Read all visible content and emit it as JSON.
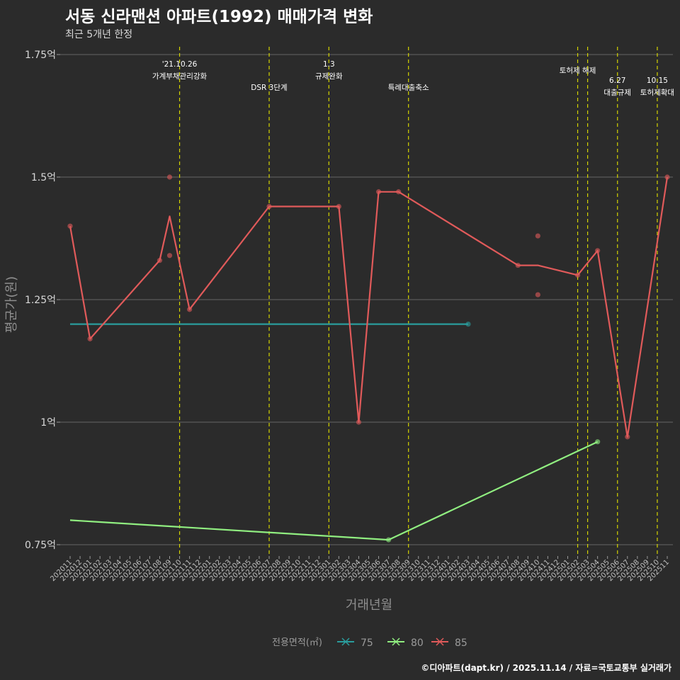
{
  "header": {
    "title": "서동 신라맨션 아파트(1992) 매매가격 변화",
    "subtitle": "최근 5개년 한정"
  },
  "footer": {
    "credit": "©디아파트(dapt.kr) / 2025.11.14 / 자료=국토교통부 실거래가"
  },
  "colors": {
    "background": "#2b2b2b",
    "grid": "#5a5a5a",
    "event_line": "#d4d400",
    "s75": "#2a9d9d",
    "s80": "#90ee80",
    "s85": "#e05a5a"
  },
  "chart_data": {
    "type": "line",
    "xlabel": "거래년월",
    "ylabel": "평균가(원)",
    "ylim": [
      0.74,
      1.77
    ],
    "yticks": [
      0.75,
      1.0,
      1.25,
      1.5,
      1.75
    ],
    "ytick_labels": [
      "0.75억",
      "1억",
      "1.25억",
      "1.5억",
      "1.75억"
    ],
    "categories": [
      "202011",
      "202012",
      "202101",
      "202102",
      "202103",
      "202104",
      "202105",
      "202106",
      "202107",
      "202108",
      "202109",
      "202110",
      "202111",
      "202112",
      "202201",
      "202202",
      "202203",
      "202204",
      "202205",
      "202206",
      "202207",
      "202208",
      "202209",
      "202210",
      "202211",
      "202212",
      "202301",
      "202302",
      "202303",
      "202304",
      "202305",
      "202306",
      "202307",
      "202308",
      "202309",
      "202310",
      "202311",
      "202312",
      "202401",
      "202402",
      "202403",
      "202404",
      "202405",
      "202406",
      "202407",
      "202408",
      "202409",
      "202410",
      "202411",
      "202412",
      "202501",
      "202502",
      "202503",
      "202504",
      "202505",
      "202506",
      "202507",
      "202508",
      "202509",
      "202510",
      "202511"
    ],
    "series": [
      {
        "name": "75",
        "color": "#2a9d9d",
        "line": [
          [
            "202011",
            1.2
          ],
          [
            "202403",
            1.2
          ]
        ],
        "points": [
          [
            "202403",
            1.2
          ]
        ]
      },
      {
        "name": "80",
        "color": "#90ee80",
        "line": [
          [
            "202011",
            0.8
          ],
          [
            "202307",
            0.76
          ],
          [
            "202504",
            0.96
          ]
        ],
        "points": [
          [
            "202307",
            0.76
          ],
          [
            "202504",
            0.96
          ]
        ]
      },
      {
        "name": "85",
        "color": "#e05a5a",
        "line": [
          [
            "202011",
            1.4
          ],
          [
            "202101",
            1.17
          ],
          [
            "202108",
            1.33
          ],
          [
            "202109",
            1.42
          ],
          [
            "202111",
            1.23
          ],
          [
            "202207",
            1.44
          ],
          [
            "202302",
            1.44
          ],
          [
            "202304",
            1.0
          ],
          [
            "202306",
            1.47
          ],
          [
            "202308",
            1.47
          ],
          [
            "202408",
            1.32
          ],
          [
            "202410",
            1.32
          ],
          [
            "202502",
            1.3
          ],
          [
            "202504",
            1.35
          ],
          [
            "202507",
            0.97
          ],
          [
            "202511",
            1.5
          ]
        ],
        "points": [
          [
            "202011",
            1.4
          ],
          [
            "202101",
            1.17
          ],
          [
            "202108",
            1.33
          ],
          [
            "202109",
            1.5
          ],
          [
            "202109",
            1.34
          ],
          [
            "202111",
            1.23
          ],
          [
            "202207",
            1.44
          ],
          [
            "202302",
            1.44
          ],
          [
            "202304",
            1.0
          ],
          [
            "202306",
            1.47
          ],
          [
            "202308",
            1.47
          ],
          [
            "202408",
            1.32
          ],
          [
            "202410",
            1.38
          ],
          [
            "202410",
            1.26
          ],
          [
            "202502",
            1.3
          ],
          [
            "202504",
            1.35
          ],
          [
            "202507",
            0.97
          ],
          [
            "202511",
            1.5
          ]
        ]
      }
    ],
    "events": [
      {
        "month": "202110",
        "line1": "'21.10.26",
        "line2": "가계부채관리강화",
        "level": 1
      },
      {
        "month": "202207",
        "line1": "DSR 3단계",
        "line2": "",
        "level": 3
      },
      {
        "month": "202301",
        "line1": "1.3",
        "line2": "규제완화",
        "level": 1
      },
      {
        "month": "202309",
        "line1": "특례대출축소",
        "line2": "",
        "level": 3
      },
      {
        "month": "202502",
        "line1": "토허제 해제",
        "line2": "",
        "level": 2
      },
      {
        "month": "202503",
        "line1": "",
        "line2": "",
        "level": 0
      },
      {
        "month": "202506",
        "line1": "6.27",
        "line2": "대출규제",
        "level": 4
      },
      {
        "month": "202510",
        "line1": "10.15",
        "line2": "토허제확대",
        "level": 4
      }
    ],
    "legend": {
      "title": "전용면적(㎡)",
      "entries": [
        "75",
        "80",
        "85"
      ],
      "position": "bottom"
    }
  }
}
